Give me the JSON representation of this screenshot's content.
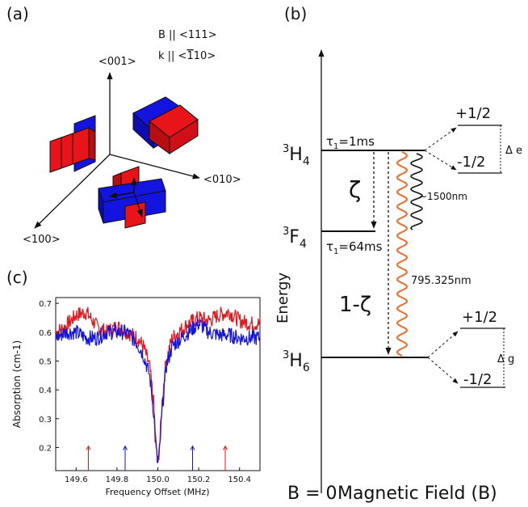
{
  "panel_a": {
    "label": "(a)",
    "field_b": "B || <111>",
    "field_k_prefix": "k || <",
    "field_k_bar": "1",
    "field_k_suffix": "10>",
    "axis_z": "<001>",
    "axis_y": "<010>",
    "axis_x": "<100>",
    "colors": {
      "red": "#e8141a",
      "blue": "#1414e0"
    }
  },
  "panel_b": {
    "label": "(b)",
    "level_h4": {
      "sup": "3",
      "main": "H",
      "sub": "4"
    },
    "level_f4": {
      "sup": "3",
      "main": "F",
      "sub": "4"
    },
    "level_h6": {
      "sup": "3",
      "main": "H",
      "sub": "6"
    },
    "tau_h4": {
      "sym": "τ",
      "sub": "1",
      "rest": "=1ms"
    },
    "tau_f4": {
      "sym": "τ",
      "sub": "1",
      "rest": "=64ms"
    },
    "zeta": "ζ",
    "one_minus_zeta": "1-ζ",
    "wave_1500": "~1500nm",
    "wave_795": "795.325nm",
    "split_e_plus": "+1/2",
    "split_e_minus": "-1/2",
    "delta_e": "Δ e",
    "split_g_plus": "+1/2",
    "split_g_minus": "-1/2",
    "delta_g": "Δ g",
    "y_axis": "Energy",
    "x_origin": "B = 0",
    "x_axis": "Magnetic Field (B)",
    "colors": {
      "orange_wave": "#f06a2a",
      "black_wave": "#111111"
    }
  },
  "panel_c": {
    "label": "(c)",
    "chart_data": {
      "type": "line",
      "xlabel": "Frequency Offset (MHz)",
      "ylabel": "Absorption (cm-1)",
      "xlim": [
        149.5,
        150.5
      ],
      "ylim": [
        0.12,
        0.72
      ],
      "x_ticks": [
        "149.6",
        "149.8",
        "150.0",
        "150.2",
        "150.4"
      ],
      "x_tick_values": [
        149.6,
        149.8,
        150.0,
        150.2,
        150.4
      ],
      "y_ticks": [
        "0.2",
        "0.3",
        "0.4",
        "0.5",
        "0.6",
        "0.7"
      ],
      "y_tick_values": [
        0.2,
        0.3,
        0.4,
        0.5,
        0.6,
        0.7
      ],
      "grid": false,
      "series": [
        {
          "color": "#e8141a",
          "x": [
            149.5,
            149.55,
            149.6,
            149.65,
            149.7,
            149.75,
            149.8,
            149.85,
            149.9,
            149.93,
            149.96,
            149.98,
            149.99,
            150.0,
            150.01,
            150.02,
            150.04,
            150.07,
            150.1,
            150.15,
            150.2,
            150.25,
            150.3,
            150.35,
            150.4,
            150.45,
            150.5
          ],
          "y": [
            0.6,
            0.62,
            0.66,
            0.67,
            0.62,
            0.6,
            0.62,
            0.6,
            0.58,
            0.55,
            0.48,
            0.35,
            0.22,
            0.14,
            0.22,
            0.35,
            0.5,
            0.58,
            0.6,
            0.63,
            0.65,
            0.64,
            0.66,
            0.67,
            0.64,
            0.63,
            0.63
          ]
        },
        {
          "color": "#1414e0",
          "x": [
            149.5,
            149.55,
            149.6,
            149.65,
            149.7,
            149.75,
            149.8,
            149.85,
            149.9,
            149.93,
            149.96,
            149.98,
            149.99,
            150.0,
            150.01,
            150.02,
            150.04,
            150.07,
            150.1,
            150.15,
            150.2,
            150.25,
            150.3,
            150.35,
            150.4,
            150.45,
            150.5
          ],
          "y": [
            0.58,
            0.6,
            0.6,
            0.58,
            0.58,
            0.6,
            0.6,
            0.6,
            0.56,
            0.52,
            0.45,
            0.32,
            0.2,
            0.14,
            0.2,
            0.32,
            0.48,
            0.55,
            0.57,
            0.6,
            0.63,
            0.6,
            0.59,
            0.59,
            0.58,
            0.58,
            0.58
          ]
        }
      ],
      "markers": [
        {
          "x": 149.66,
          "color": "#e8141a"
        },
        {
          "x": 149.84,
          "color": "#1414e0"
        },
        {
          "x": 150.17,
          "color": "#1414e0"
        },
        {
          "x": 150.33,
          "color": "#e8141a"
        }
      ]
    }
  }
}
